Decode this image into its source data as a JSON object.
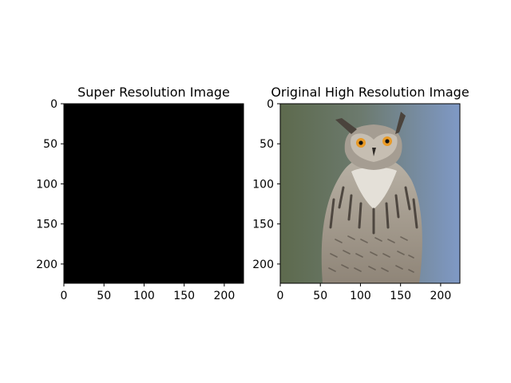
{
  "chart_data": [
    {
      "type": "image",
      "title": "Super Resolution Image",
      "image_description": "",
      "fill": "#000000",
      "xlim": [
        0,
        224
      ],
      "ylim": [
        224,
        0
      ],
      "xticks": [
        0,
        50,
        100,
        150,
        200
      ],
      "yticks": [
        0,
        50,
        100,
        150,
        200
      ],
      "xtick_labels": [
        "0",
        "50",
        "100",
        "150",
        "200"
      ],
      "ytick_labels": [
        "0",
        "50",
        "100",
        "150",
        "200"
      ]
    },
    {
      "type": "image",
      "title": "Original High Resolution Image",
      "image_description": "",
      "palette": {
        "sky_left": "#5c6a4c",
        "sky_right": "#7f98c3",
        "feather_light": "#cfc8bd",
        "feather_mid": "#9f968a",
        "feather_dark": "#4a433c",
        "eye": "#e89a27"
      },
      "xlim": [
        0,
        224
      ],
      "ylim": [
        224,
        0
      ],
      "xticks": [
        0,
        50,
        100,
        150,
        200
      ],
      "yticks": [
        0,
        50,
        100,
        150,
        200
      ],
      "xtick_labels": [
        "0",
        "50",
        "100",
        "150",
        "200"
      ],
      "ytick_labels": [
        "0",
        "50",
        "100",
        "150",
        "200"
      ]
    }
  ]
}
